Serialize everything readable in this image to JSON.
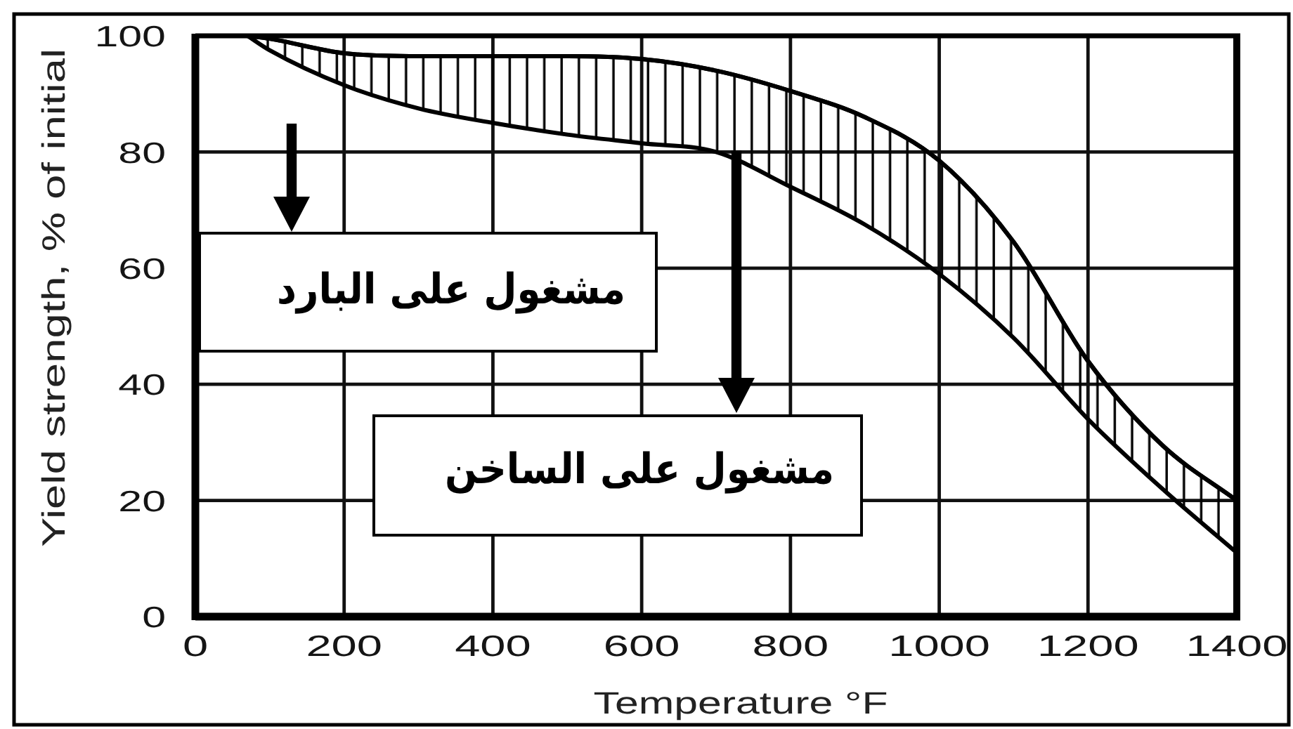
{
  "chart_data": {
    "type": "line",
    "xlabel": "Temperature °F",
    "ylabel": "Yield strength, % of initial",
    "x": [
      70,
      100,
      200,
      300,
      400,
      500,
      600,
      700,
      800,
      900,
      1000,
      1100,
      1200,
      1300,
      1400
    ],
    "series": [
      {
        "color": "#000000",
        "values": [
          100,
          99.5,
          97,
          96.5,
          96.5,
          96.5,
          96,
          94,
          90.5,
          86,
          78.5,
          64.5,
          44,
          29.5,
          20
        ],
        "upper": [
          100,
          99.5,
          97,
          96.5,
          96.5,
          96.5,
          96,
          94,
          90.5,
          86,
          78.5,
          64.5,
          44,
          29.5,
          20
        ],
        "lower": [
          100,
          97.5,
          91.5,
          87.5,
          85,
          83,
          81.5,
          80,
          74,
          67.5,
          59,
          48,
          34,
          22,
          11
        ]
      }
    ],
    "xlim": [
      0,
      1400
    ],
    "ylim": [
      0,
      100
    ],
    "xticks": [
      0,
      200,
      400,
      600,
      800,
      1000,
      1200,
      1400
    ],
    "yticks": [
      0,
      20,
      40,
      60,
      80,
      100
    ],
    "grid": true,
    "annotations": [
      "مشغول على البارد",
      "مشغول على الساخن"
    ]
  }
}
